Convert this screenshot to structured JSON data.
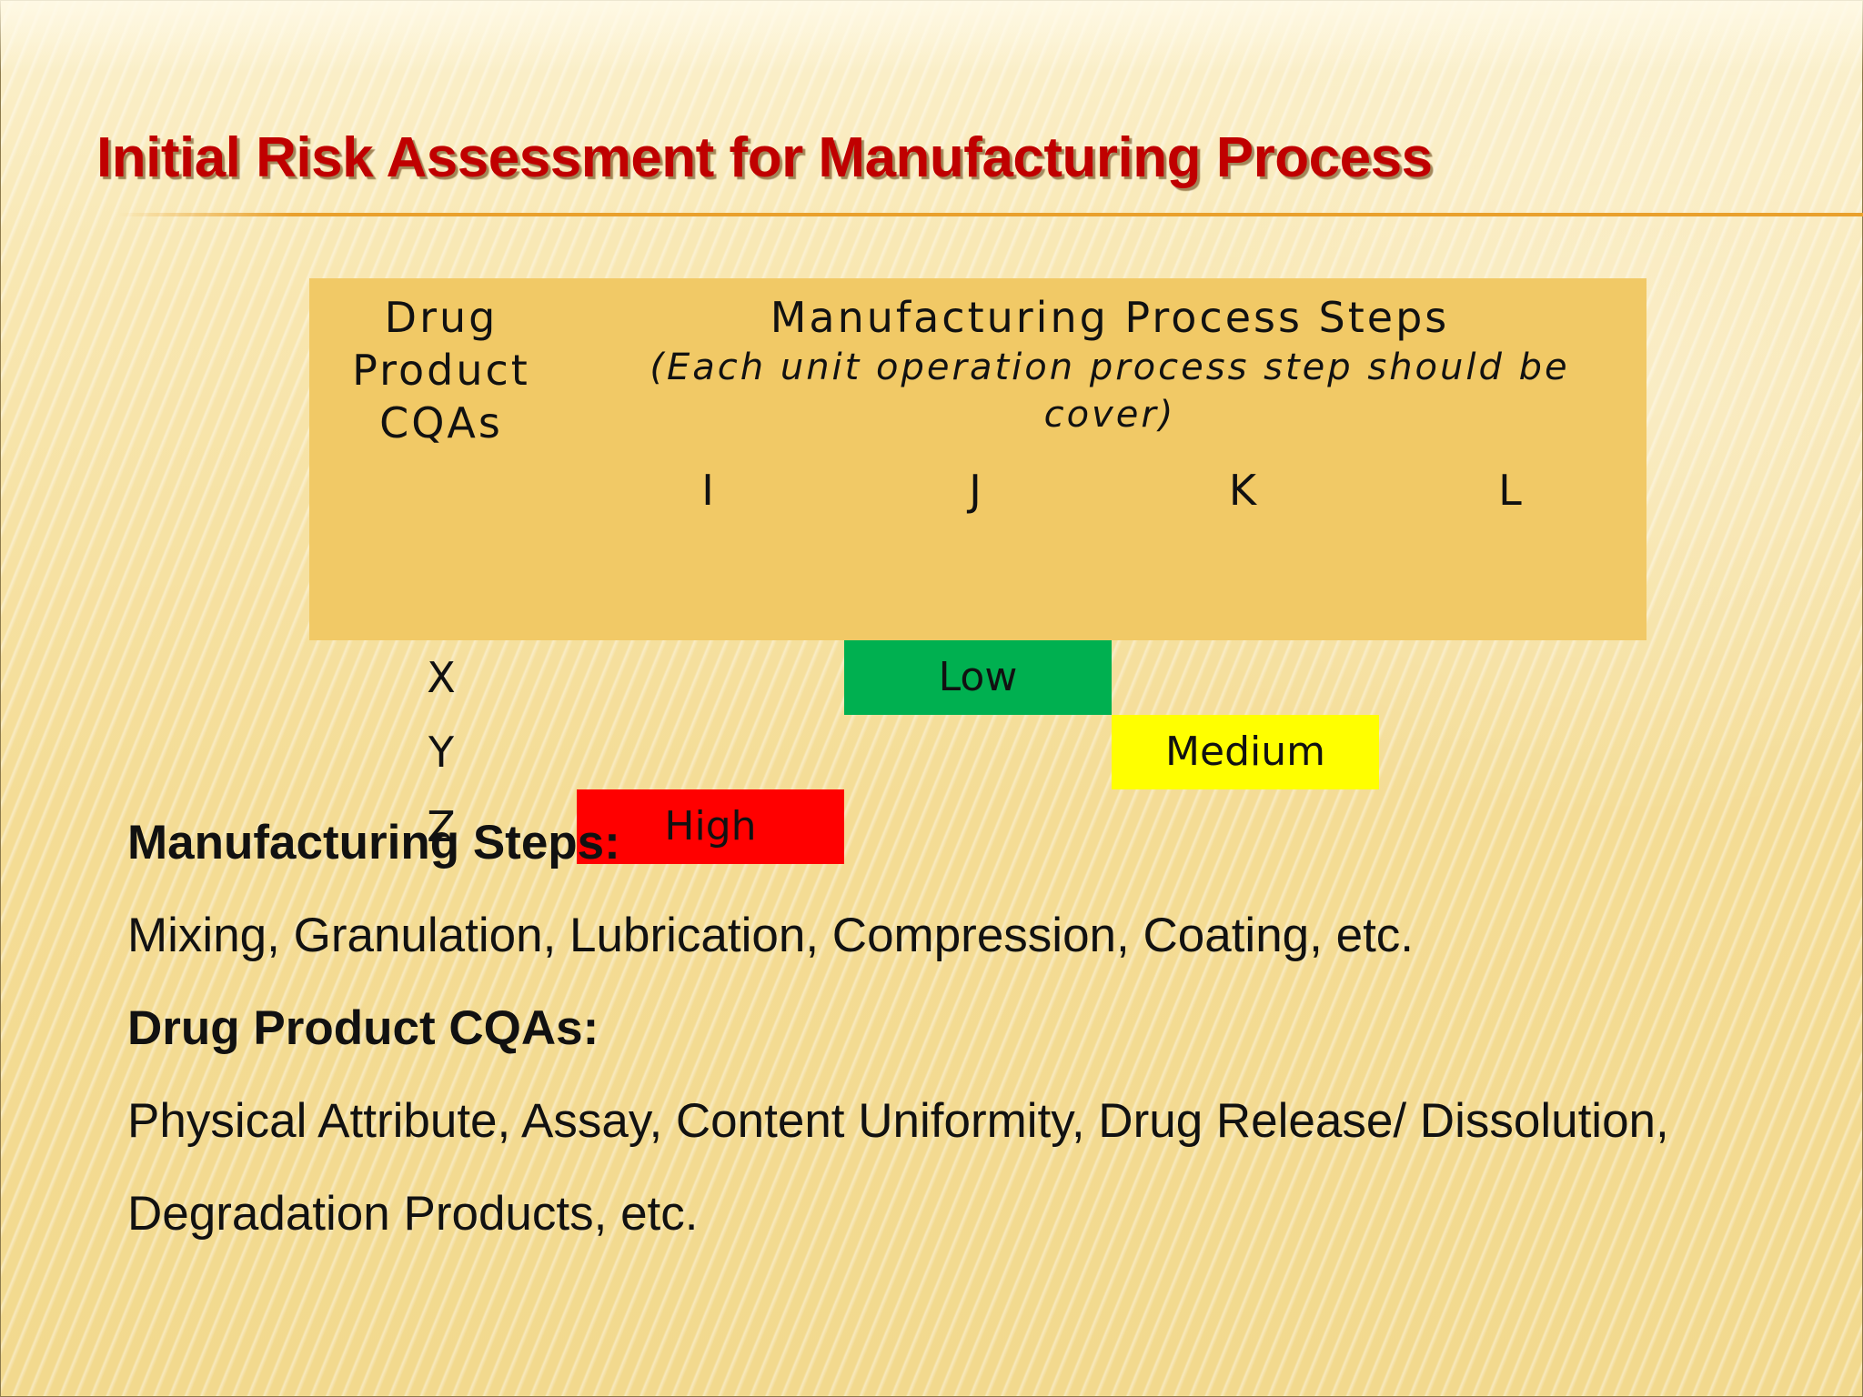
{
  "slide": {
    "title": "Initial Risk Assessment for Manufacturing Process"
  },
  "table": {
    "cqa_header": [
      "Drug",
      "Product",
      "CQAs"
    ],
    "steps_header": {
      "title": "Manufacturing Process Steps",
      "note_line1": "(Each unit operation  process step should be",
      "note_line2": "cover)"
    },
    "columns": [
      "I",
      "J",
      "K",
      "L"
    ],
    "rows": [
      {
        "label": "X",
        "risk": "Low",
        "step": "J",
        "color": "#00b050"
      },
      {
        "label": "Y",
        "risk": "Medium",
        "step": "K",
        "color": "#ffff00"
      },
      {
        "label": "Z",
        "risk": "High",
        "step": "I",
        "color": "#ff0000"
      }
    ]
  },
  "body": {
    "steps_heading": "Manufacturing Steps:",
    "steps_text": "Mixing, Granulation, Lubrication, Compression, Coating, etc.",
    "cqa_heading": "Drug Product CQAs:",
    "cqa_text_line1": "Physical Attribute, Assay, Content Uniformity, Drug Release/ Dissolution,",
    "cqa_text_line2": "Degradation Products, etc."
  }
}
